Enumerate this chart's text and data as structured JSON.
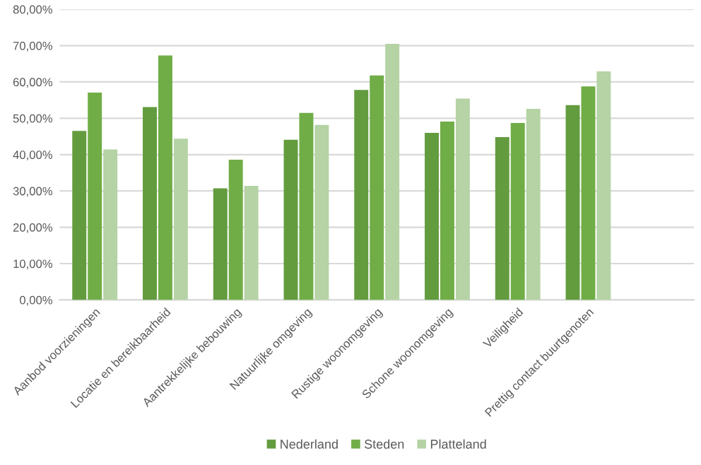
{
  "chart_data": {
    "type": "bar",
    "categories": [
      "Aanbod voorzieningen",
      "Locatie en bereikbaarheid",
      "Aantrekkelijke bebouwing",
      "Natuurlijke omgeving",
      "Rustige woonomgeving",
      "Schone woonomgeving",
      "Veiligheid",
      "Prettig contact buurtgenoten",
      null
    ],
    "series": [
      {
        "name": "Nederland",
        "color": "#639c3f",
        "values": [
          46.5,
          53.1,
          30.7,
          44.1,
          57.8,
          46.0,
          44.8,
          53.6,
          null
        ]
      },
      {
        "name": "Steden",
        "color": "#70ad47",
        "values": [
          57.1,
          67.3,
          38.6,
          51.5,
          61.8,
          49.1,
          48.7,
          58.8,
          null
        ]
      },
      {
        "name": "Platteland",
        "color": "#b5d3a5",
        "values": [
          41.4,
          44.4,
          31.4,
          48.2,
          70.5,
          55.4,
          52.6,
          62.9,
          null
        ]
      }
    ],
    "ylim": [
      0,
      80
    ],
    "yticks": [
      {
        "value": 0,
        "label": "0,00%"
      },
      {
        "value": 10,
        "label": "10,00%"
      },
      {
        "value": 20,
        "label": "20,00%"
      },
      {
        "value": 30,
        "label": "30,00%"
      },
      {
        "value": 40,
        "label": "40,00%"
      },
      {
        "value": 50,
        "label": "50,00%"
      },
      {
        "value": 60,
        "label": "60,00%"
      },
      {
        "value": 70,
        "label": "70,00%"
      },
      {
        "value": 80,
        "label": "80,00%"
      }
    ],
    "grid": "y",
    "legend": "bottom"
  }
}
